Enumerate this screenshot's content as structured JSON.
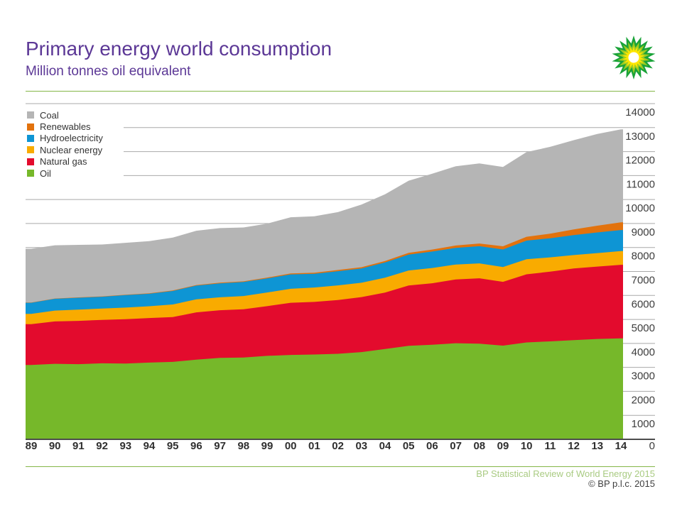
{
  "page": {
    "title": "Primary energy world consumption",
    "subtitle": "Million tonnes oil equivalent"
  },
  "logo": {
    "text": "bp"
  },
  "legend": {
    "items": [
      "Coal",
      "Renewables",
      "Hydroelectricity",
      "Nuclear energy",
      "Natural gas",
      "Oil"
    ]
  },
  "chart_data": {
    "type": "area",
    "stacked": true,
    "title": "Primary energy world consumption",
    "ylabel": "Million tonnes oil equivalent",
    "xlabel": "",
    "grid": true,
    "legend_position": "top-left",
    "ylim": [
      0,
      14000
    ],
    "yticks": [
      1000,
      2000,
      3000,
      4000,
      5000,
      6000,
      7000,
      8000,
      9000,
      10000,
      11000,
      12000,
      13000,
      14000
    ],
    "y_zero_label": "0",
    "x": [
      "89",
      "90",
      "91",
      "92",
      "93",
      "94",
      "95",
      "96",
      "97",
      "98",
      "99",
      "00",
      "01",
      "02",
      "03",
      "04",
      "05",
      "06",
      "07",
      "08",
      "09",
      "10",
      "11",
      "12",
      "13",
      "14"
    ],
    "series": [
      {
        "name": "Oil",
        "color": "#76b82a",
        "values": [
          3098,
          3148,
          3135,
          3170,
          3161,
          3200,
          3228,
          3323,
          3396,
          3410,
          3481,
          3519,
          3537,
          3567,
          3639,
          3767,
          3902,
          3945,
          4007,
          3986,
          3908,
          4040,
          4085,
          4138,
          4185,
          4211
        ]
      },
      {
        "name": "Natural gas",
        "color": "#e30b2d",
        "values": [
          1703,
          1769,
          1806,
          1810,
          1849,
          1858,
          1869,
          1971,
          1987,
          2016,
          2071,
          2176,
          2194,
          2243,
          2292,
          2350,
          2512,
          2565,
          2661,
          2731,
          2661,
          2843,
          2905,
          2986,
          3020,
          3066
        ]
      },
      {
        "name": "Nuclear energy",
        "color": "#f9ab00",
        "values": [
          430,
          453,
          468,
          472,
          484,
          492,
          526,
          544,
          541,
          551,
          571,
          584,
          601,
          611,
          598,
          625,
          627,
          635,
          622,
          619,
          614,
          626,
          600,
          560,
          563,
          574
        ]
      },
      {
        "name": "Hydroelectricity",
        "color": "#0e95d4",
        "values": [
          464,
          489,
          497,
          495,
          519,
          521,
          564,
          573,
          582,
          584,
          589,
          601,
          574,
          592,
          595,
          634,
          661,
          688,
          696,
          717,
          736,
          779,
          795,
          831,
          859,
          879
        ]
      },
      {
        "name": "Renewables",
        "color": "#e2720d",
        "values": [
          11,
          12,
          14,
          15,
          17,
          19,
          22,
          24,
          26,
          29,
          33,
          38,
          42,
          48,
          54,
          62,
          72,
          83,
          97,
          114,
          133,
          158,
          194,
          237,
          283,
          317
        ]
      },
      {
        "name": "Coal",
        "color": "#b5b5b5",
        "values": [
          2240,
          2220,
          2189,
          2163,
          2165,
          2175,
          2202,
          2264,
          2277,
          2246,
          2250,
          2343,
          2356,
          2412,
          2611,
          2778,
          3013,
          3164,
          3305,
          3342,
          3305,
          3532,
          3619,
          3723,
          3827,
          3882
        ]
      }
    ]
  },
  "footer": {
    "source": "BP Statistical Review of World Energy 2015",
    "copyright": "© BP p.l.c. 2015"
  },
  "colors": {
    "background": "#ffffff",
    "title_purple": "#5c3896",
    "rule_green": "#84b648",
    "footer_source_green": "#a9cb82",
    "footer_copyright_grey": "#3f3f3f",
    "axis_text": "#3d3d3d",
    "x_axis_text": "#2f2f2f",
    "gridline_grey": "#a9a9a9",
    "baseline_grey": "#4d4d4d",
    "legend_text": "#333333",
    "logo_green": "#3fa03c",
    "helios_outer": "#1aa339",
    "helios_mid": "#9fcb21",
    "helios_inner": "#ffe600",
    "helios_center": "#ffffff"
  }
}
